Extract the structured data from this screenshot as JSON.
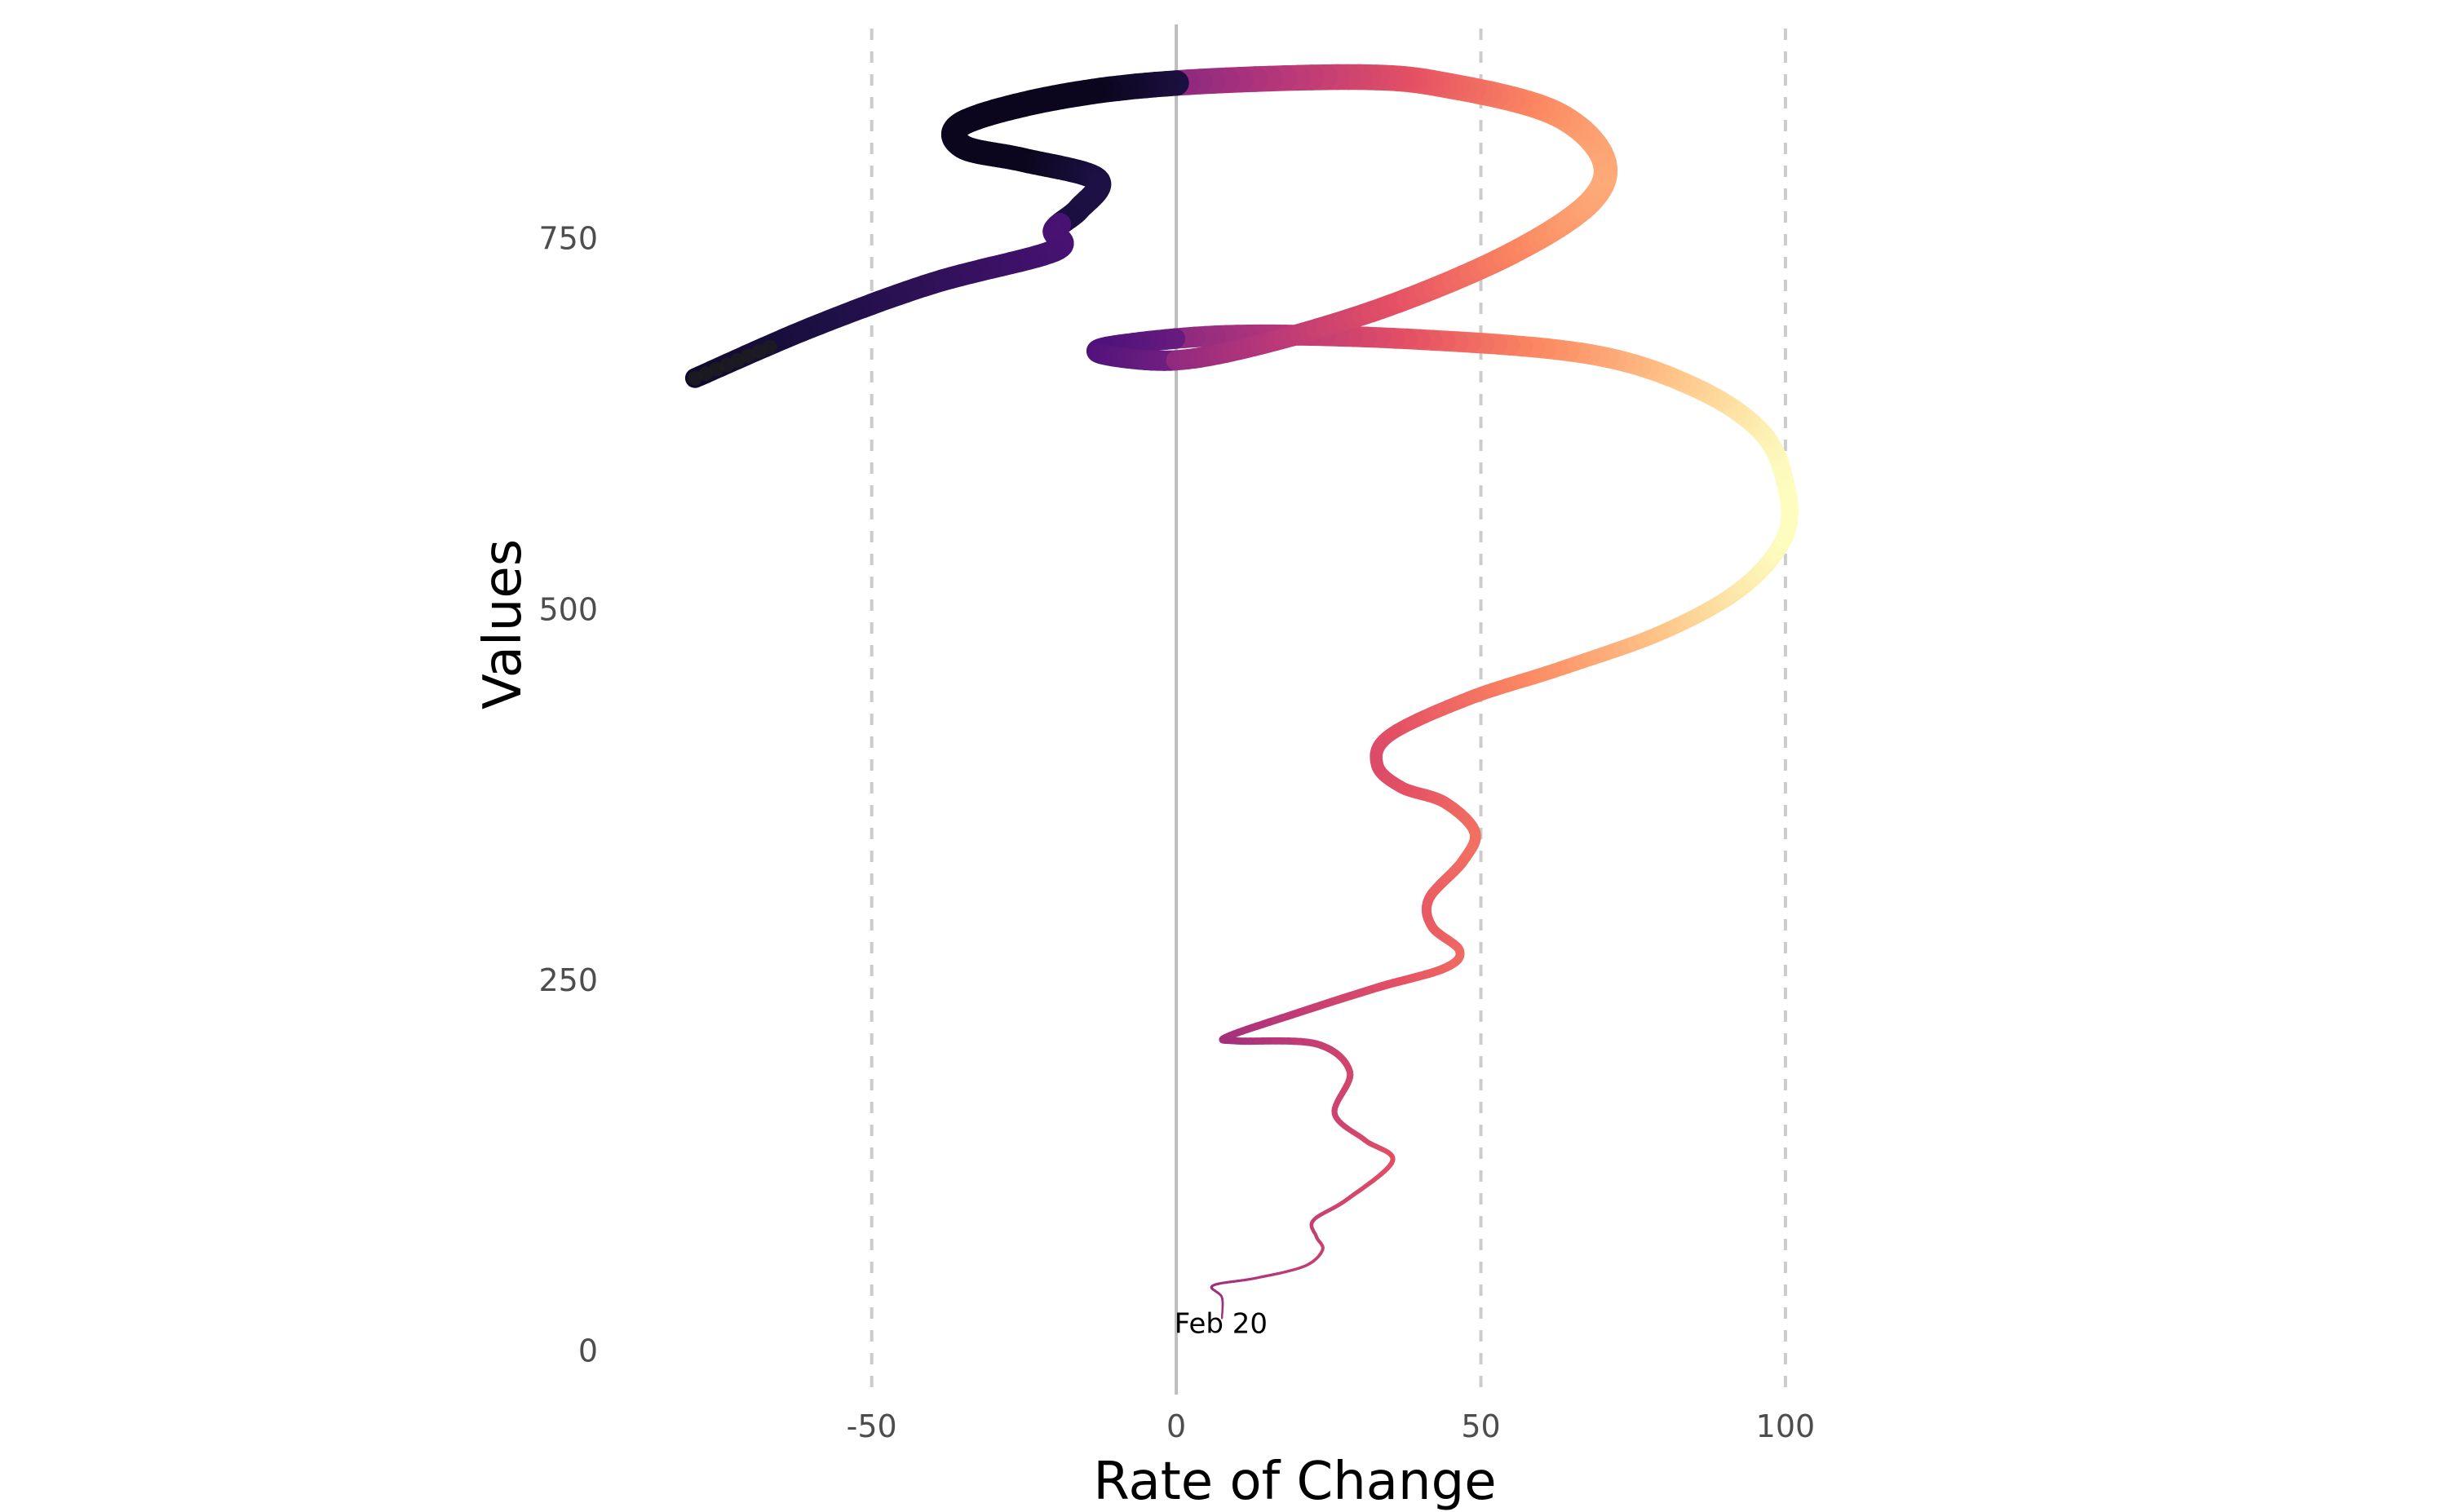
{
  "chart_data": {
    "type": "line",
    "title": "",
    "xlabel": "Rate of Change",
    "ylabel": "Values",
    "xlim": [
      -90,
      145
    ],
    "ylim": [
      -35,
      900
    ],
    "x_ticks": [
      -50,
      0,
      50,
      100
    ],
    "x_tick_labels": [
      "-50",
      "0",
      "50",
      "100"
    ],
    "y_ticks": [
      0,
      250,
      500,
      750
    ],
    "y_tick_labels": [
      "0",
      "250",
      "500",
      "750"
    ],
    "vertical_gridlines": [
      -50,
      50,
      100
    ],
    "zero_line": 0,
    "grid": "dashed vertical",
    "legend": "none",
    "color_scale": "magma",
    "colors": {
      "background": "#ffffff",
      "grid": "#cccccc",
      "zero_line": "#bdbdbd",
      "ticks": "#4d4d4d",
      "text": "#000000"
    },
    "annotations": [
      {
        "text": "Feb 20",
        "x": 6,
        "y": 12
      }
    ],
    "series": [
      {
        "points": [
          {
            "x": 7.5,
            "y": 22
          },
          {
            "x": 7.5,
            "y": 36
          },
          {
            "x": 6,
            "y": 44
          },
          {
            "x": 13,
            "y": 49
          },
          {
            "x": 21,
            "y": 57
          },
          {
            "x": 24,
            "y": 68
          },
          {
            "x": 23,
            "y": 77
          },
          {
            "x": 22.5,
            "y": 88
          },
          {
            "x": 28,
            "y": 102
          },
          {
            "x": 35.5,
            "y": 128
          },
          {
            "x": 31,
            "y": 142
          },
          {
            "x": 26,
            "y": 160
          },
          {
            "x": 28.5,
            "y": 188
          },
          {
            "x": 23,
            "y": 207
          },
          {
            "x": 10,
            "y": 209
          },
          {
            "x": 8.5,
            "y": 212
          },
          {
            "x": 20,
            "y": 228
          },
          {
            "x": 33,
            "y": 245
          },
          {
            "x": 44,
            "y": 258
          },
          {
            "x": 46.5,
            "y": 270
          },
          {
            "x": 42,
            "y": 286
          },
          {
            "x": 41.5,
            "y": 305
          },
          {
            "x": 47,
            "y": 330
          },
          {
            "x": 49,
            "y": 350
          },
          {
            "x": 44,
            "y": 370
          },
          {
            "x": 37,
            "y": 380
          },
          {
            "x": 33,
            "y": 395
          },
          {
            "x": 35,
            "y": 415
          },
          {
            "x": 48,
            "y": 440
          },
          {
            "x": 63,
            "y": 460
          },
          {
            "x": 80,
            "y": 485
          },
          {
            "x": 93,
            "y": 515
          },
          {
            "x": 100,
            "y": 550
          },
          {
            "x": 100,
            "y": 585
          },
          {
            "x": 96,
            "y": 620
          },
          {
            "x": 85,
            "y": 650
          },
          {
            "x": 68,
            "y": 672
          },
          {
            "x": 40,
            "y": 682
          },
          {
            "x": 10,
            "y": 685
          },
          {
            "x": -10,
            "y": 678
          },
          {
            "x": -12,
            "y": 672
          },
          {
            "x": 0,
            "y": 668
          },
          {
            "x": 15,
            "y": 680
          },
          {
            "x": 35,
            "y": 705
          },
          {
            "x": 55,
            "y": 740
          },
          {
            "x": 68,
            "y": 775
          },
          {
            "x": 70,
            "y": 805
          },
          {
            "x": 62,
            "y": 835
          },
          {
            "x": 45,
            "y": 853
          },
          {
            "x": 30,
            "y": 859
          },
          {
            "x": 0,
            "y": 855
          },
          {
            "x": -20,
            "y": 845
          },
          {
            "x": -35,
            "y": 828
          },
          {
            "x": -35,
            "y": 812
          },
          {
            "x": -25,
            "y": 803
          },
          {
            "x": -13,
            "y": 790
          },
          {
            "x": -16,
            "y": 770
          },
          {
            "x": -20,
            "y": 756
          },
          {
            "x": -20,
            "y": 742
          },
          {
            "x": -40,
            "y": 720
          },
          {
            "x": -60,
            "y": 690
          },
          {
            "x": -79,
            "y": 656
          }
        ]
      }
    ]
  }
}
